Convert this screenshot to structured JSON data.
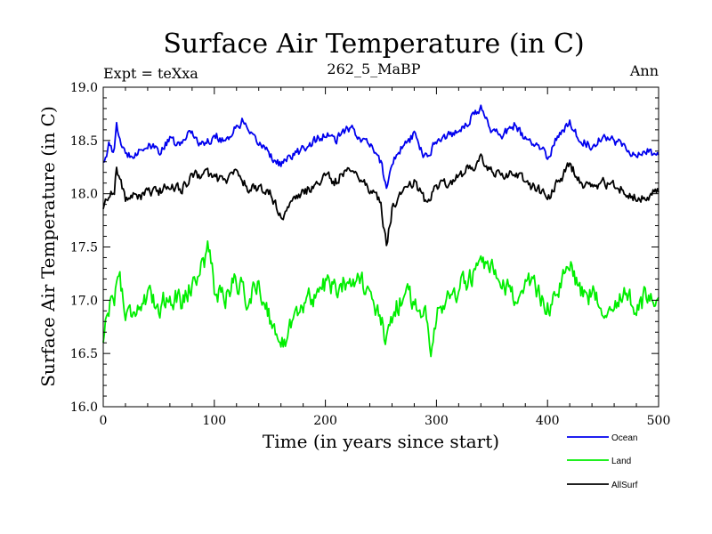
{
  "chart_data": {
    "type": "line",
    "title": "Surface Air Temperature (in C)",
    "subtitle": "262_5_MaBP",
    "left_label": "Expt = teXxa",
    "right_label": "Ann",
    "xlabel": "Time (in years since start)",
    "ylabel": "Surface Air Temperature (in C)",
    "xlim": [
      0,
      500
    ],
    "ylim": [
      16.0,
      19.0
    ],
    "xticks": [
      0,
      100,
      200,
      300,
      400,
      500
    ],
    "xtick_labels": [
      "0",
      "100",
      "200",
      "300",
      "400",
      "500"
    ],
    "yticks": [
      16.0,
      16.5,
      17.0,
      17.5,
      18.0,
      18.5,
      19.0
    ],
    "ytick_labels": [
      "16.0",
      "16.5",
      "17.0",
      "17.5",
      "18.0",
      "18.5",
      "19.0"
    ],
    "legend_position": "bottom-right",
    "series": [
      {
        "name": "Ocean",
        "color": "#0000ee",
        "anchors_x": [
          0,
          5,
          10,
          12,
          20,
          30,
          40,
          50,
          60,
          70,
          78,
          90,
          100,
          110,
          125,
          135,
          145,
          155,
          160,
          170,
          180,
          190,
          200,
          210,
          220,
          230,
          240,
          250,
          255,
          260,
          270,
          280,
          290,
          300,
          310,
          320,
          330,
          340,
          350,
          360,
          370,
          380,
          390,
          400,
          410,
          420,
          430,
          440,
          450,
          460,
          470,
          480,
          490,
          500
        ],
        "anchors_y": [
          18.3,
          18.45,
          18.4,
          18.62,
          18.35,
          18.4,
          18.45,
          18.4,
          18.5,
          18.45,
          18.6,
          18.45,
          18.55,
          18.5,
          18.68,
          18.5,
          18.45,
          18.3,
          18.28,
          18.35,
          18.42,
          18.5,
          18.55,
          18.5,
          18.62,
          18.55,
          18.45,
          18.3,
          18.05,
          18.3,
          18.45,
          18.55,
          18.35,
          18.5,
          18.55,
          18.6,
          18.7,
          18.8,
          18.6,
          18.55,
          18.65,
          18.5,
          18.45,
          18.35,
          18.55,
          18.68,
          18.5,
          18.45,
          18.55,
          18.5,
          18.45,
          18.35,
          18.4,
          18.35
        ],
        "noise_amplitude": 0.07
      },
      {
        "name": "Land",
        "color": "#00ee00",
        "anchors_x": [
          0,
          3,
          10,
          15,
          20,
          30,
          40,
          50,
          60,
          70,
          80,
          90,
          95,
          100,
          110,
          120,
          130,
          140,
          150,
          155,
          160,
          170,
          180,
          190,
          200,
          210,
          220,
          230,
          240,
          250,
          255,
          260,
          270,
          280,
          290,
          295,
          300,
          310,
          320,
          330,
          340,
          350,
          360,
          370,
          380,
          390,
          400,
          410,
          420,
          430,
          440,
          450,
          460,
          470,
          480,
          490,
          500
        ],
        "anchors_y": [
          16.6,
          16.9,
          17.05,
          17.25,
          16.85,
          16.95,
          17.0,
          16.95,
          17.05,
          17.0,
          17.15,
          17.35,
          17.5,
          17.1,
          17.05,
          17.2,
          17.0,
          17.15,
          16.85,
          16.7,
          16.5,
          16.85,
          16.95,
          17.05,
          17.15,
          17.1,
          17.2,
          17.25,
          17.0,
          16.8,
          16.6,
          16.85,
          17.05,
          17.0,
          16.85,
          16.6,
          16.9,
          17.0,
          17.1,
          17.2,
          17.3,
          17.25,
          17.1,
          17.05,
          17.15,
          17.1,
          16.95,
          17.05,
          17.35,
          17.1,
          17.05,
          16.95,
          17.0,
          17.05,
          16.9,
          17.05,
          17.05
        ],
        "noise_amplitude": 0.17
      },
      {
        "name": "AllSurf",
        "color": "#000000",
        "anchors_x": [
          0,
          5,
          10,
          12,
          20,
          30,
          40,
          50,
          60,
          70,
          80,
          90,
          100,
          110,
          120,
          130,
          140,
          150,
          160,
          170,
          180,
          190,
          200,
          210,
          220,
          230,
          240,
          250,
          255,
          260,
          270,
          280,
          290,
          300,
          310,
          320,
          330,
          340,
          350,
          360,
          370,
          380,
          390,
          400,
          410,
          420,
          430,
          440,
          450,
          460,
          470,
          480,
          490,
          500
        ],
        "anchors_y": [
          17.85,
          18.0,
          18.05,
          18.25,
          17.95,
          17.98,
          18.0,
          18.02,
          18.08,
          18.05,
          18.15,
          18.2,
          18.15,
          18.12,
          18.22,
          18.05,
          18.05,
          18.0,
          17.8,
          17.9,
          18.0,
          18.08,
          18.15,
          18.12,
          18.25,
          18.18,
          18.05,
          17.9,
          17.5,
          17.85,
          18.05,
          18.12,
          17.92,
          18.08,
          18.12,
          18.15,
          18.25,
          18.32,
          18.2,
          18.15,
          18.22,
          18.1,
          18.05,
          17.95,
          18.12,
          18.28,
          18.1,
          18.05,
          18.1,
          18.08,
          18.02,
          17.95,
          18.0,
          18.0
        ],
        "noise_amplitude": 0.08
      }
    ]
  }
}
